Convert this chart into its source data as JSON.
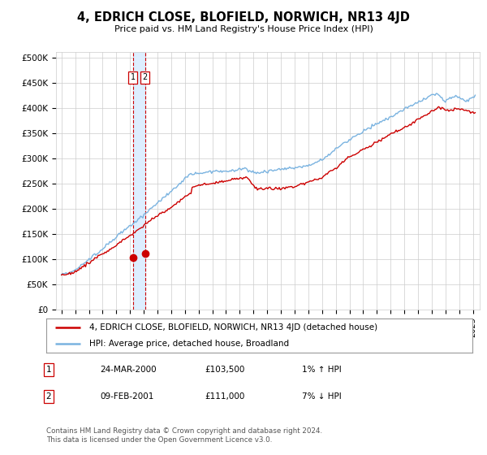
{
  "title": "4, EDRICH CLOSE, BLOFIELD, NORWICH, NR13 4JD",
  "subtitle": "Price paid vs. HM Land Registry's House Price Index (HPI)",
  "ylabel_ticks": [
    "£0",
    "£50K",
    "£100K",
    "£150K",
    "£200K",
    "£250K",
    "£300K",
    "£350K",
    "£400K",
    "£450K",
    "£500K"
  ],
  "ytick_values": [
    0,
    50000,
    100000,
    150000,
    200000,
    250000,
    300000,
    350000,
    400000,
    450000,
    500000
  ],
  "xlim_start": 1994.6,
  "xlim_end": 2025.5,
  "ylim_min": 0,
  "ylim_max": 510000,
  "hpi_color": "#7ab3e0",
  "price_color": "#cc0000",
  "dashed_line_color": "#cc0000",
  "shade_color": "#ddeeff",
  "transaction_dates": [
    2000.21,
    2001.09
  ],
  "transaction_prices": [
    103500,
    111000
  ],
  "transaction_labels": [
    "1",
    "2"
  ],
  "legend_line1": "4, EDRICH CLOSE, BLOFIELD, NORWICH, NR13 4JD (detached house)",
  "legend_line2": "HPI: Average price, detached house, Broadland",
  "table_rows": [
    [
      "1",
      "24-MAR-2000",
      "£103,500",
      "1% ↑ HPI"
    ],
    [
      "2",
      "09-FEB-2001",
      "£111,000",
      "7% ↓ HPI"
    ]
  ],
  "footer": "Contains HM Land Registry data © Crown copyright and database right 2024.\nThis data is licensed under the Open Government Licence v3.0.",
  "background_color": "#ffffff",
  "plot_bg_color": "#ffffff",
  "grid_color": "#cccccc"
}
